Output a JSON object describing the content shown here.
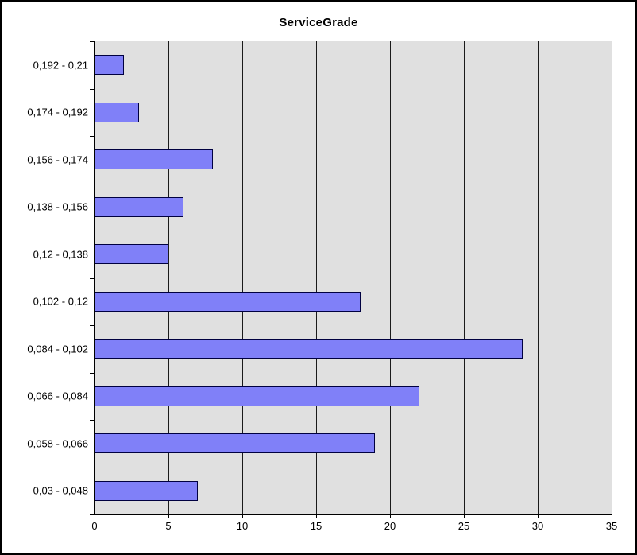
{
  "chart_data": {
    "type": "bar",
    "orientation": "horizontal",
    "title": "ServiceGrade",
    "categories": [
      "0,192 - 0,21",
      "0,174 - 0,192",
      "0,156 - 0,174",
      "0,138 - 0,156",
      "0,12 - 0,138",
      "0,102 - 0,12",
      "0,084 - 0,102",
      "0,066 - 0,084",
      "0,058 - 0,066",
      "0,03 - 0,048"
    ],
    "values": [
      2,
      3,
      8,
      6,
      5,
      18,
      29,
      22,
      19,
      7
    ],
    "xlabel": "",
    "ylabel": "",
    "xlim": [
      0,
      35
    ],
    "x_ticks": [
      0,
      5,
      10,
      15,
      20,
      25,
      30,
      35
    ],
    "grid": true,
    "legend": "none",
    "colors": {
      "bar_fill": "#8080f8",
      "bar_border": "#000040",
      "plot_background": "#e0e0e0",
      "gridline": "#1a1a1a",
      "text": "#000000",
      "outer_frame": "#000000",
      "page_background": "#ffffff"
    }
  }
}
